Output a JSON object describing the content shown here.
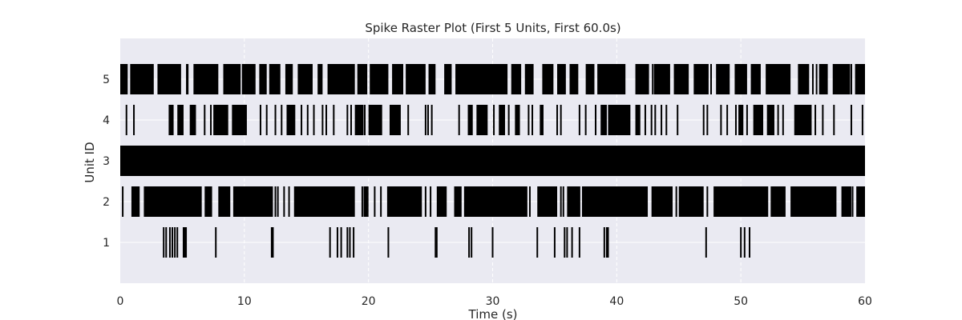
{
  "chart_data": {
    "type": "raster",
    "title": "Spike Raster Plot (First 5 Units, First 60.0s)",
    "xlabel": "Time (s)",
    "ylabel": "Unit ID",
    "xlim": [
      0,
      60
    ],
    "ylim": [
      0,
      6
    ],
    "x_ticks": [
      0,
      10,
      20,
      30,
      40,
      50,
      60
    ],
    "y_ticks": [
      1,
      2,
      3,
      4,
      5
    ],
    "grid": true,
    "units": [
      {
        "unit": 1,
        "spikes": [
          3.5,
          3.7,
          4.0,
          4.2,
          4.4,
          4.6,
          5.1,
          5.2,
          5.3,
          7.7,
          12.2,
          12.3,
          16.9,
          17.5,
          17.8,
          18.3,
          18.5,
          18.8,
          21.6,
          25.4,
          25.5,
          28.1,
          28.3,
          30.0,
          33.6,
          35.0,
          35.8,
          36.0,
          36.4,
          37.0,
          39.0,
          39.2,
          39.3,
          47.2,
          50.0,
          50.3,
          50.7
        ]
      },
      {
        "unit": 2,
        "density": "dense",
        "segments": [
          [
            0.9,
            1.5
          ],
          [
            1.9,
            6.5
          ],
          [
            6.8,
            7.4
          ],
          [
            7.9,
            8.8
          ],
          [
            9.1,
            12.3
          ],
          [
            14.0,
            18.9
          ],
          [
            19.6,
            20.0
          ],
          [
            21.5,
            24.3
          ],
          [
            25.5,
            26.3
          ],
          [
            26.9,
            27.5
          ],
          [
            27.7,
            28.9
          ],
          [
            28.7,
            32.8
          ],
          [
            33.6,
            35.2
          ],
          [
            36.0,
            37.0
          ],
          [
            37.2,
            42.5
          ],
          [
            42.8,
            44.5
          ],
          [
            45.0,
            47.0
          ],
          [
            47.8,
            52.2
          ],
          [
            52.4,
            53.6
          ],
          [
            54.0,
            57.7
          ],
          [
            58.1,
            58.9
          ],
          [
            59.3,
            60.0
          ]
        ],
        "spikes": [
          0.2,
          1.0,
          1.2,
          1.5,
          6.2,
          6.5,
          8.8,
          12.5,
          12.7,
          13.2,
          13.6,
          19.5,
          20.5,
          21.0,
          24.6,
          25.0,
          28.0,
          33.0,
          35.5,
          35.7,
          36.5,
          37.0,
          41.0,
          44.8,
          47.3,
          52.8,
          55.7,
          59.0
        ]
      },
      {
        "unit": 3,
        "density": "continuous",
        "segments": [
          [
            0,
            60
          ]
        ],
        "spikes": []
      },
      {
        "unit": 4,
        "density": "sparse",
        "segments": [
          [
            3.9,
            4.3
          ],
          [
            4.6,
            5.1
          ],
          [
            5.6,
            6.1
          ],
          [
            7.5,
            8.7
          ],
          [
            9.0,
            10.2
          ],
          [
            13.4,
            14.1
          ],
          [
            18.9,
            19.6
          ],
          [
            20.0,
            21.1
          ],
          [
            21.7,
            22.6
          ],
          [
            28.0,
            28.4
          ],
          [
            28.7,
            29.6
          ],
          [
            30.5,
            31.0
          ],
          [
            31.8,
            32.2
          ],
          [
            33.8,
            34.1
          ],
          [
            38.7,
            39.2
          ],
          [
            39.3,
            41.1
          ],
          [
            41.5,
            41.9
          ],
          [
            49.8,
            50.2
          ],
          [
            51.0,
            51.8
          ],
          [
            52.1,
            52.7
          ],
          [
            54.3,
            55.7
          ]
        ],
        "spikes": [
          0.5,
          1.1,
          6.8,
          7.3,
          9.2,
          11.3,
          11.8,
          12.5,
          13.0,
          14.6,
          15.1,
          15.6,
          16.3,
          16.6,
          17.2,
          18.3,
          18.6,
          19.7,
          20.4,
          22.0,
          23.2,
          24.6,
          24.8,
          25.1,
          27.3,
          29.1,
          30.1,
          31.3,
          32.9,
          33.2,
          35.2,
          35.5,
          37.0,
          37.5,
          38.3,
          42.3,
          42.8,
          43.1,
          43.6,
          44.0,
          44.9,
          47.0,
          47.3,
          48.4,
          48.9,
          49.6,
          50.5,
          53.0,
          53.4,
          56.0,
          56.6,
          57.5,
          58.9,
          59.8
        ]
      },
      {
        "unit": 5,
        "density": "dense",
        "segments": [
          [
            0,
            0.6
          ],
          [
            0.8,
            2.7
          ],
          [
            3.0,
            4.9
          ],
          [
            5.3,
            5.5
          ],
          [
            5.9,
            7.9
          ],
          [
            8.3,
            9.7
          ],
          [
            9.8,
            10.9
          ],
          [
            11.2,
            11.8
          ],
          [
            12.0,
            12.9
          ],
          [
            13.3,
            13.9
          ],
          [
            14.3,
            15.5
          ],
          [
            15.9,
            16.3
          ],
          [
            16.7,
            18.9
          ],
          [
            19.1,
            19.9
          ],
          [
            20.1,
            21.6
          ],
          [
            21.9,
            22.8
          ],
          [
            23.0,
            24.6
          ],
          [
            24.9,
            25.4
          ],
          [
            26.1,
            26.7
          ],
          [
            27.0,
            31.2
          ],
          [
            31.5,
            32.3
          ],
          [
            32.6,
            33.3
          ],
          [
            34.0,
            34.9
          ],
          [
            35.2,
            35.9
          ],
          [
            36.2,
            36.9
          ],
          [
            37.5,
            38.2
          ],
          [
            38.5,
            40.7
          ],
          [
            41.5,
            42.6
          ],
          [
            43.0,
            44.3
          ],
          [
            44.6,
            45.8
          ],
          [
            46.2,
            47.4
          ],
          [
            48.0,
            49.1
          ],
          [
            49.5,
            50.5
          ],
          [
            50.8,
            51.6
          ],
          [
            52.0,
            54.0
          ],
          [
            54.6,
            55.5
          ],
          [
            56.3,
            57.0
          ],
          [
            57.4,
            58.8
          ],
          [
            59.2,
            60.0
          ]
        ],
        "spikes": [
          3.1,
          7.0,
          13.7,
          16.0,
          18.0,
          24.9,
          26.3,
          29.5,
          31.7,
          35.3,
          36.5,
          38.5,
          42.9,
          47.6,
          48.3,
          52.5,
          55.8,
          56.1,
          58.9,
          59.4
        ]
      }
    ]
  }
}
